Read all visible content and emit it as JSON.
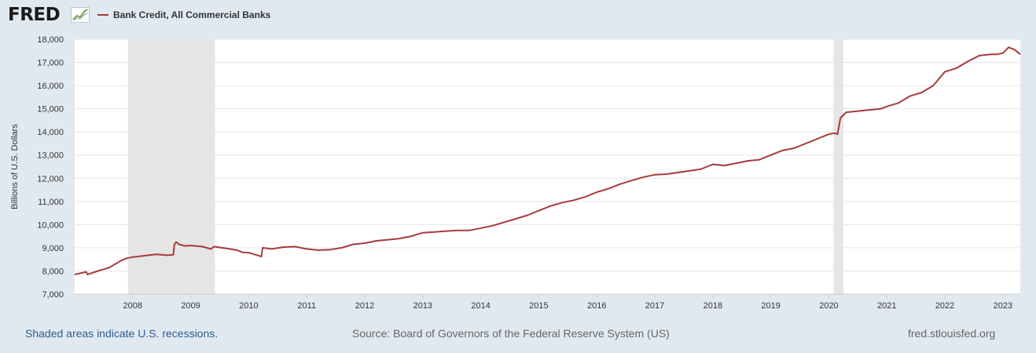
{
  "header": {
    "logo_text": "FRED",
    "logo_icon": "chart-line-icon",
    "legend_label": "Bank Credit, All Commercial Banks"
  },
  "footer": {
    "recession_note": "Shaded areas indicate U.S. recessions.",
    "source": "Source: Board of Governors of the Federal Reserve System (US)",
    "site": "fred.stlouisfed.org"
  },
  "colors": {
    "series": "#a83a3a",
    "recession": "#e5e5e5",
    "grid": "#e6e6e6",
    "background": "#e1e9f0",
    "plot_bg": "#ffffff"
  },
  "chart_data": {
    "type": "line",
    "title": "",
    "xlabel": "",
    "ylabel": "Billions of U.S. Dollars",
    "ylim": [
      7000,
      18000
    ],
    "yticks": [
      "7,000",
      "8,000",
      "9,000",
      "10,000",
      "11,000",
      "12,000",
      "13,000",
      "14,000",
      "15,000",
      "16,000",
      "17,000",
      "18,000"
    ],
    "xlim": [
      2007.0,
      2023.3
    ],
    "xticks": [
      "2008",
      "2009",
      "2010",
      "2011",
      "2012",
      "2013",
      "2014",
      "2015",
      "2016",
      "2017",
      "2018",
      "2019",
      "2020",
      "2021",
      "2022",
      "2023"
    ],
    "grid": true,
    "legend": "top-left",
    "recessions": [
      [
        2007.92,
        2009.42
      ],
      [
        2020.08,
        2020.25
      ]
    ],
    "series": [
      {
        "name": "Bank Credit, All Commercial Banks",
        "x": [
          2007.0,
          2007.2,
          2007.22,
          2007.4,
          2007.6,
          2007.8,
          2007.9,
          2008.0,
          2008.2,
          2008.4,
          2008.6,
          2008.7,
          2008.72,
          2008.75,
          2008.8,
          2008.9,
          2009.0,
          2009.2,
          2009.35,
          2009.4,
          2009.6,
          2009.8,
          2009.9,
          2010.0,
          2010.15,
          2010.22,
          2010.24,
          2010.4,
          2010.6,
          2010.8,
          2011.0,
          2011.2,
          2011.4,
          2011.6,
          2011.8,
          2012.0,
          2012.2,
          2012.4,
          2012.6,
          2012.8,
          2013.0,
          2013.2,
          2013.4,
          2013.6,
          2013.8,
          2014.0,
          2014.2,
          2014.4,
          2014.6,
          2014.8,
          2015.0,
          2015.2,
          2015.4,
          2015.6,
          2015.8,
          2016.0,
          2016.2,
          2016.4,
          2016.6,
          2016.8,
          2017.0,
          2017.2,
          2017.4,
          2017.6,
          2017.8,
          2018.0,
          2018.2,
          2018.4,
          2018.6,
          2018.8,
          2019.0,
          2019.2,
          2019.4,
          2019.6,
          2019.8,
          2020.0,
          2020.1,
          2020.15,
          2020.2,
          2020.3,
          2020.5,
          2020.7,
          2020.9,
          2021.0,
          2021.2,
          2021.4,
          2021.6,
          2021.8,
          2022.0,
          2022.2,
          2022.4,
          2022.6,
          2022.8,
          2022.9,
          2023.0,
          2023.1,
          2023.2,
          2023.3
        ],
        "y": [
          7850,
          7960,
          7850,
          8000,
          8150,
          8450,
          8550,
          8600,
          8660,
          8720,
          8680,
          8700,
          9150,
          9250,
          9150,
          9080,
          9100,
          9050,
          8950,
          9050,
          8980,
          8900,
          8800,
          8790,
          8680,
          8620,
          9000,
          8950,
          9030,
          9050,
          8950,
          8900,
          8920,
          9000,
          9150,
          9200,
          9300,
          9350,
          9400,
          9500,
          9650,
          9680,
          9720,
          9750,
          9750,
          9850,
          9950,
          10100,
          10250,
          10400,
          10600,
          10800,
          10950,
          11050,
          11200,
          11400,
          11550,
          11750,
          11900,
          12050,
          12150,
          12180,
          12250,
          12320,
          12400,
          12600,
          12550,
          12650,
          12750,
          12800,
          13000,
          13200,
          13300,
          13500,
          13700,
          13900,
          13950,
          13900,
          14600,
          14850,
          14900,
          14950,
          15000,
          15100,
          15250,
          15550,
          15700,
          16000,
          16600,
          16750,
          17050,
          17300,
          17350,
          17350,
          17400,
          17650,
          17550,
          17350
        ]
      }
    ]
  }
}
